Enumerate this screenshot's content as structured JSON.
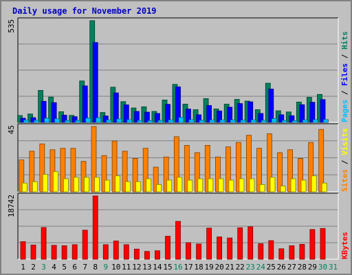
{
  "chart_data": {
    "type": "bar",
    "title": "Daily usage for November 2019",
    "x": [
      "1",
      "2",
      "3",
      "4",
      "5",
      "6",
      "7",
      "8",
      "9",
      "10",
      "11",
      "12",
      "13",
      "14",
      "15",
      "16",
      "17",
      "18",
      "19",
      "20",
      "21",
      "22",
      "23",
      "24",
      "25",
      "26",
      "27",
      "28",
      "29",
      "30",
      "31"
    ],
    "weekend_days": [
      "3",
      "9",
      "16",
      "23",
      "24",
      "30",
      "31"
    ],
    "colors": {
      "hits": "#00805c",
      "files": "#0000ff",
      "pages": "#00c0ff",
      "visits": "#ffff00",
      "sites": "#ff8000",
      "kbytes": "#ff0000",
      "title": "#0000c0",
      "weekday_label": "#000000",
      "weekend_label": "#00805c"
    },
    "panels": [
      {
        "name": "hits-files-pages",
        "max_label": "535",
        "ylim": [
          0,
          535
        ],
        "legend": [
          "Pages",
          "Files",
          "Hits"
        ],
        "series": [
          {
            "name": "Hits",
            "values": [
              36,
              44,
              168,
              133,
              56,
              37,
              218,
              535,
              52,
              185,
              109,
              76,
              82,
              58,
              118,
              200,
              96,
              67,
              125,
              71,
              96,
              121,
              112,
              67,
              206,
              61,
              55,
              107,
              132,
              147,
              0
            ]
          },
          {
            "name": "Files",
            "values": [
              22,
              25,
              111,
              104,
              38,
              30,
              192,
              420,
              34,
              155,
              92,
              58,
              54,
              47,
              95,
              187,
              70,
              40,
              89,
              60,
              80,
              99,
              108,
              47,
              175,
              40,
              35,
              93,
              106,
              120,
              0
            ]
          },
          {
            "name": "Pages",
            "values": [
              12,
              11,
              22,
              19,
              10,
              10,
              22,
              24,
              13,
              18,
              14,
              10,
              9,
              11,
              13,
              26,
              14,
              11,
              13,
              13,
              13,
              12,
              13,
              11,
              20,
              10,
              9,
              13,
              14,
              15,
              0
            ]
          }
        ]
      },
      {
        "name": "visits-sites",
        "max_label": "45",
        "ylim": [
          0,
          45
        ],
        "legend": [
          "Sites",
          "Visits"
        ],
        "series": [
          {
            "name": "Sites",
            "values": [
              22,
              28,
              33,
              29,
              30,
              30,
              21,
              45,
              25,
              35,
              28,
              23,
              30,
              17,
              24,
              38,
              32,
              27,
              32,
              24,
              31,
              34,
              39,
              30,
              40,
              27,
              29,
              23,
              34,
              43,
              0
            ]
          },
          {
            "name": "Visits",
            "values": [
              6,
              7,
              12,
              14,
              9,
              10,
              10,
              10,
              8,
              11,
              7,
              7,
              9,
              5,
              8,
              10,
              8,
              9,
              9,
              9,
              8,
              9,
              9,
              5,
              10,
              4,
              9,
              8,
              11,
              6,
              0
            ]
          }
        ]
      },
      {
        "name": "kbytes",
        "max_label": "18742",
        "ylim": [
          0,
          18742
        ],
        "legend": [
          "KBytes"
        ],
        "series": [
          {
            "name": "KBytes",
            "values": [
              5200,
              4200,
              9400,
              4100,
              4000,
              4300,
              8600,
              18742,
              4300,
              5400,
              4300,
              3000,
              2300,
              2500,
              6800,
              11200,
              4900,
              4500,
              9200,
              6600,
              6300,
              9300,
              9600,
              4600,
              5500,
              3100,
              4000,
              4400,
              8800,
              9100,
              0
            ]
          }
        ]
      }
    ]
  }
}
